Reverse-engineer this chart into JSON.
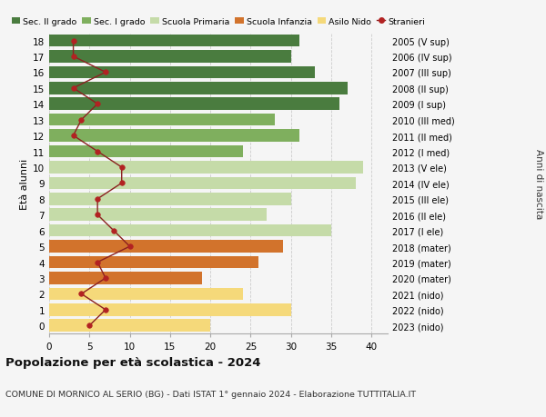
{
  "ages": [
    18,
    17,
    16,
    15,
    14,
    13,
    12,
    11,
    10,
    9,
    8,
    7,
    6,
    5,
    4,
    3,
    2,
    1,
    0
  ],
  "bar_values": [
    31,
    30,
    33,
    37,
    36,
    28,
    31,
    24,
    39,
    38,
    30,
    27,
    35,
    29,
    26,
    19,
    24,
    30,
    20
  ],
  "stranieri": [
    3,
    3,
    7,
    3,
    6,
    4,
    3,
    6,
    9,
    9,
    6,
    6,
    8,
    10,
    6,
    7,
    4,
    7,
    5
  ],
  "right_labels": [
    "2005 (V sup)",
    "2006 (IV sup)",
    "2007 (III sup)",
    "2008 (II sup)",
    "2009 (I sup)",
    "2010 (III med)",
    "2011 (II med)",
    "2012 (I med)",
    "2013 (V ele)",
    "2014 (IV ele)",
    "2015 (III ele)",
    "2016 (II ele)",
    "2017 (I ele)",
    "2018 (mater)",
    "2019 (mater)",
    "2020 (mater)",
    "2021 (nido)",
    "2022 (nido)",
    "2023 (nido)"
  ],
  "bar_colors": [
    "#4a7c3f",
    "#4a7c3f",
    "#4a7c3f",
    "#4a7c3f",
    "#4a7c3f",
    "#7faf5e",
    "#7faf5e",
    "#7faf5e",
    "#c5dba8",
    "#c5dba8",
    "#c5dba8",
    "#c5dba8",
    "#c5dba8",
    "#d2732c",
    "#d2732c",
    "#d2732c",
    "#f5d97a",
    "#f5d97a",
    "#f5d97a"
  ],
  "legend_labels": [
    "Sec. II grado",
    "Sec. I grado",
    "Scuola Primaria",
    "Scuola Infanzia",
    "Asilo Nido",
    "Stranieri"
  ],
  "legend_colors": [
    "#4a7c3f",
    "#7faf5e",
    "#c5dba8",
    "#d2732c",
    "#f5d97a",
    "#b22222"
  ],
  "stranieri_color": "#b22222",
  "stranieri_line_color": "#8b2020",
  "ylabel": "Età alunni",
  "right_ylabel": "Anni di nascita",
  "title": "Popolazione per età scolastica - 2024",
  "subtitle": "COMUNE DI MORNICO AL SERIO (BG) - Dati ISTAT 1° gennaio 2024 - Elaborazione TUTTITALIA.IT",
  "xlim": [
    0,
    42
  ],
  "xticks": [
    0,
    5,
    10,
    15,
    20,
    25,
    30,
    35,
    40
  ],
  "bg_color": "#f5f5f5",
  "grid_color": "#cccccc"
}
